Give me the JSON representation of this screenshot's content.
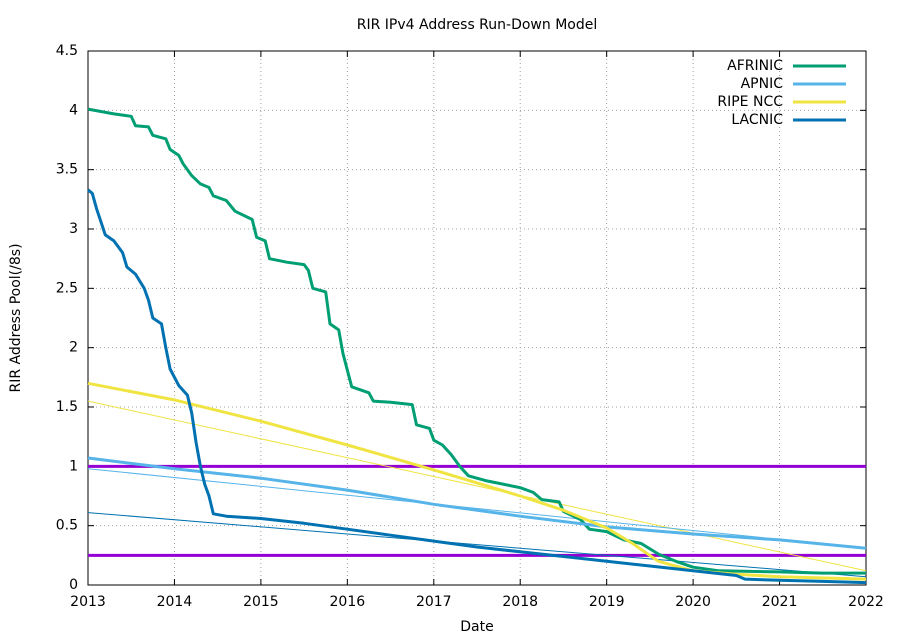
{
  "chart_data": {
    "type": "line",
    "title": "RIR IPv4 Address Run-Down Model",
    "x_label": "Date",
    "y_label": "RIR Address Pool(/8s)",
    "xlim": [
      2013,
      2022
    ],
    "xticks": [
      2013,
      2014,
      2015,
      2016,
      2017,
      2018,
      2019,
      2020,
      2021,
      2022
    ],
    "ylim": [
      0,
      4.5
    ],
    "yticks": [
      0,
      0.5,
      1,
      1.5,
      2,
      2.5,
      3,
      3.5,
      4,
      4.5
    ],
    "grid": true,
    "legend": "top-right",
    "series": [
      {
        "name": "AFRINIC",
        "color": "#009e73",
        "x": [
          2013,
          2013.3,
          2013.5,
          2013.55,
          2013.7,
          2013.75,
          2013.9,
          2013.95,
          2014.05,
          2014.1,
          2014.2,
          2014.3,
          2014.4,
          2014.45,
          2014.6,
          2014.7,
          2014.9,
          2014.95,
          2015.05,
          2015.1,
          2015.3,
          2015.5,
          2015.55,
          2015.6,
          2015.75,
          2015.8,
          2015.9,
          2015.95,
          2016.05,
          2016.25,
          2016.3,
          2016.5,
          2016.75,
          2016.8,
          2016.95,
          2017.0,
          2017.1,
          2017.2,
          2017.3,
          2017.4,
          2017.6,
          2017.8,
          2018.0,
          2018.15,
          2018.25,
          2018.45,
          2018.5,
          2018.7,
          2018.8,
          2019.0,
          2019.2,
          2019.4,
          2019.6,
          2019.8,
          2020.0,
          2020.3,
          2021.0,
          2021.5,
          2022
        ],
        "values": [
          4.01,
          3.97,
          3.95,
          3.87,
          3.86,
          3.79,
          3.76,
          3.67,
          3.62,
          3.55,
          3.45,
          3.38,
          3.35,
          3.28,
          3.24,
          3.15,
          3.08,
          2.93,
          2.9,
          2.75,
          2.72,
          2.7,
          2.65,
          2.5,
          2.47,
          2.2,
          2.15,
          1.95,
          1.67,
          1.62,
          1.55,
          1.54,
          1.52,
          1.35,
          1.32,
          1.22,
          1.18,
          1.1,
          1.0,
          0.92,
          0.88,
          0.85,
          0.82,
          0.78,
          0.72,
          0.7,
          0.62,
          0.55,
          0.47,
          0.45,
          0.38,
          0.35,
          0.26,
          0.2,
          0.15,
          0.12,
          0.11,
          0.1,
          0.1
        ]
      },
      {
        "name": "APNIC",
        "color": "#56b4e9",
        "x": [
          2013,
          2014,
          2015,
          2016,
          2017,
          2018,
          2019,
          2020,
          2021,
          2022
        ],
        "values": [
          1.07,
          0.98,
          0.9,
          0.8,
          0.68,
          0.58,
          0.49,
          0.43,
          0.38,
          0.31
        ]
      },
      {
        "name": "RIPE NCC",
        "color": "#f0e442",
        "x": [
          2013,
          2014,
          2015,
          2016,
          2017,
          2018,
          2018.5,
          2019,
          2019.3,
          2019.6,
          2020,
          2020.5,
          2021,
          2022
        ],
        "values": [
          1.7,
          1.56,
          1.38,
          1.18,
          0.97,
          0.75,
          0.63,
          0.48,
          0.35,
          0.2,
          0.12,
          0.09,
          0.07,
          0.05
        ]
      },
      {
        "name": "LACNIC",
        "color": "#0072b2",
        "x": [
          2013,
          2013.05,
          2013.1,
          2013.2,
          2013.3,
          2013.4,
          2013.45,
          2013.55,
          2013.65,
          2013.7,
          2013.75,
          2013.85,
          2013.9,
          2013.95,
          2014.05,
          2014.15,
          2014.2,
          2014.25,
          2014.3,
          2014.35,
          2014.4,
          2014.45,
          2014.6,
          2015,
          2015.5,
          2016,
          2016.5,
          2017,
          2017.5,
          2018,
          2018.5,
          2019,
          2019.5,
          2020,
          2020.5,
          2020.6,
          2021,
          2021.5,
          2022
        ],
        "values": [
          3.33,
          3.3,
          3.17,
          2.95,
          2.9,
          2.8,
          2.68,
          2.62,
          2.5,
          2.4,
          2.25,
          2.2,
          2.0,
          1.82,
          1.68,
          1.6,
          1.45,
          1.2,
          1.0,
          0.85,
          0.75,
          0.6,
          0.58,
          0.56,
          0.52,
          0.47,
          0.42,
          0.37,
          0.32,
          0.28,
          0.24,
          0.2,
          0.16,
          0.12,
          0.08,
          0.05,
          0.04,
          0.03,
          0.02
        ]
      }
    ],
    "trend_lines": [
      {
        "color": "#f0e442",
        "x": [
          2013,
          2022
        ],
        "values": [
          1.55,
          0.12
        ]
      },
      {
        "color": "#56b4e9",
        "x": [
          2013,
          2022
        ],
        "values": [
          0.98,
          0.31
        ]
      },
      {
        "color": "#0072b2",
        "x": [
          2013,
          2022
        ],
        "values": [
          0.61,
          0.07
        ]
      }
    ],
    "reference_lines": [
      {
        "color": "#9400d3",
        "value": 1
      },
      {
        "color": "#9400d3",
        "value": 0.25
      }
    ]
  }
}
